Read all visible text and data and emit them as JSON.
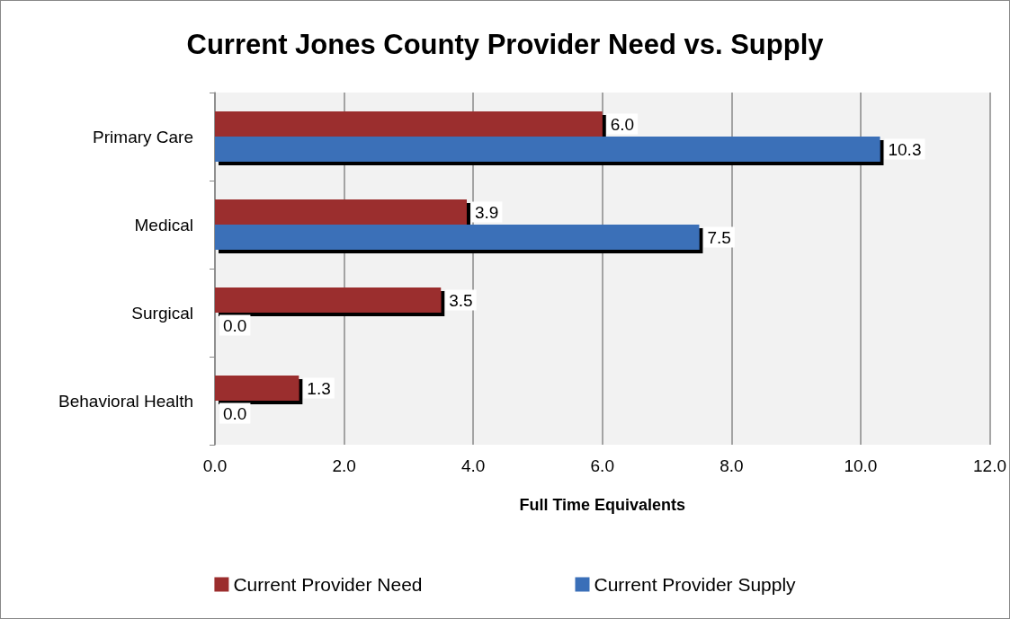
{
  "chart_data": {
    "type": "bar",
    "orientation": "horizontal",
    "title": "Current Jones County Provider Need vs. Supply",
    "xlabel": "Full Time Equivalents",
    "categories": [
      "Primary Care",
      "Medical",
      "Surgical",
      "Behavioral Health"
    ],
    "series": [
      {
        "name": "Current Provider Need",
        "color": "#9b2d2d",
        "values": [
          6.0,
          3.9,
          3.5,
          1.3
        ],
        "value_labels": [
          "6.0",
          "3.9",
          "3.5",
          "1.3"
        ]
      },
      {
        "name": "Current Provider Supply",
        "color": "#3a6fb8",
        "values": [
          10.3,
          7.5,
          0,
          0
        ],
        "value_labels": [
          "10.3",
          "7.5",
          "0.0",
          "0.0"
        ]
      }
    ],
    "xlim": [
      0,
      12
    ],
    "xticks": [
      {
        "value": 0,
        "label": "0.0"
      },
      {
        "value": 2,
        "label": "2.0"
      },
      {
        "value": 4,
        "label": "4.0"
      },
      {
        "value": 6,
        "label": "6.0"
      },
      {
        "value": 8,
        "label": "8.0"
      },
      {
        "value": 10,
        "label": "10.0"
      },
      {
        "value": 12,
        "label": "12.0"
      }
    ],
    "grid": "x",
    "legend": "bottom"
  }
}
